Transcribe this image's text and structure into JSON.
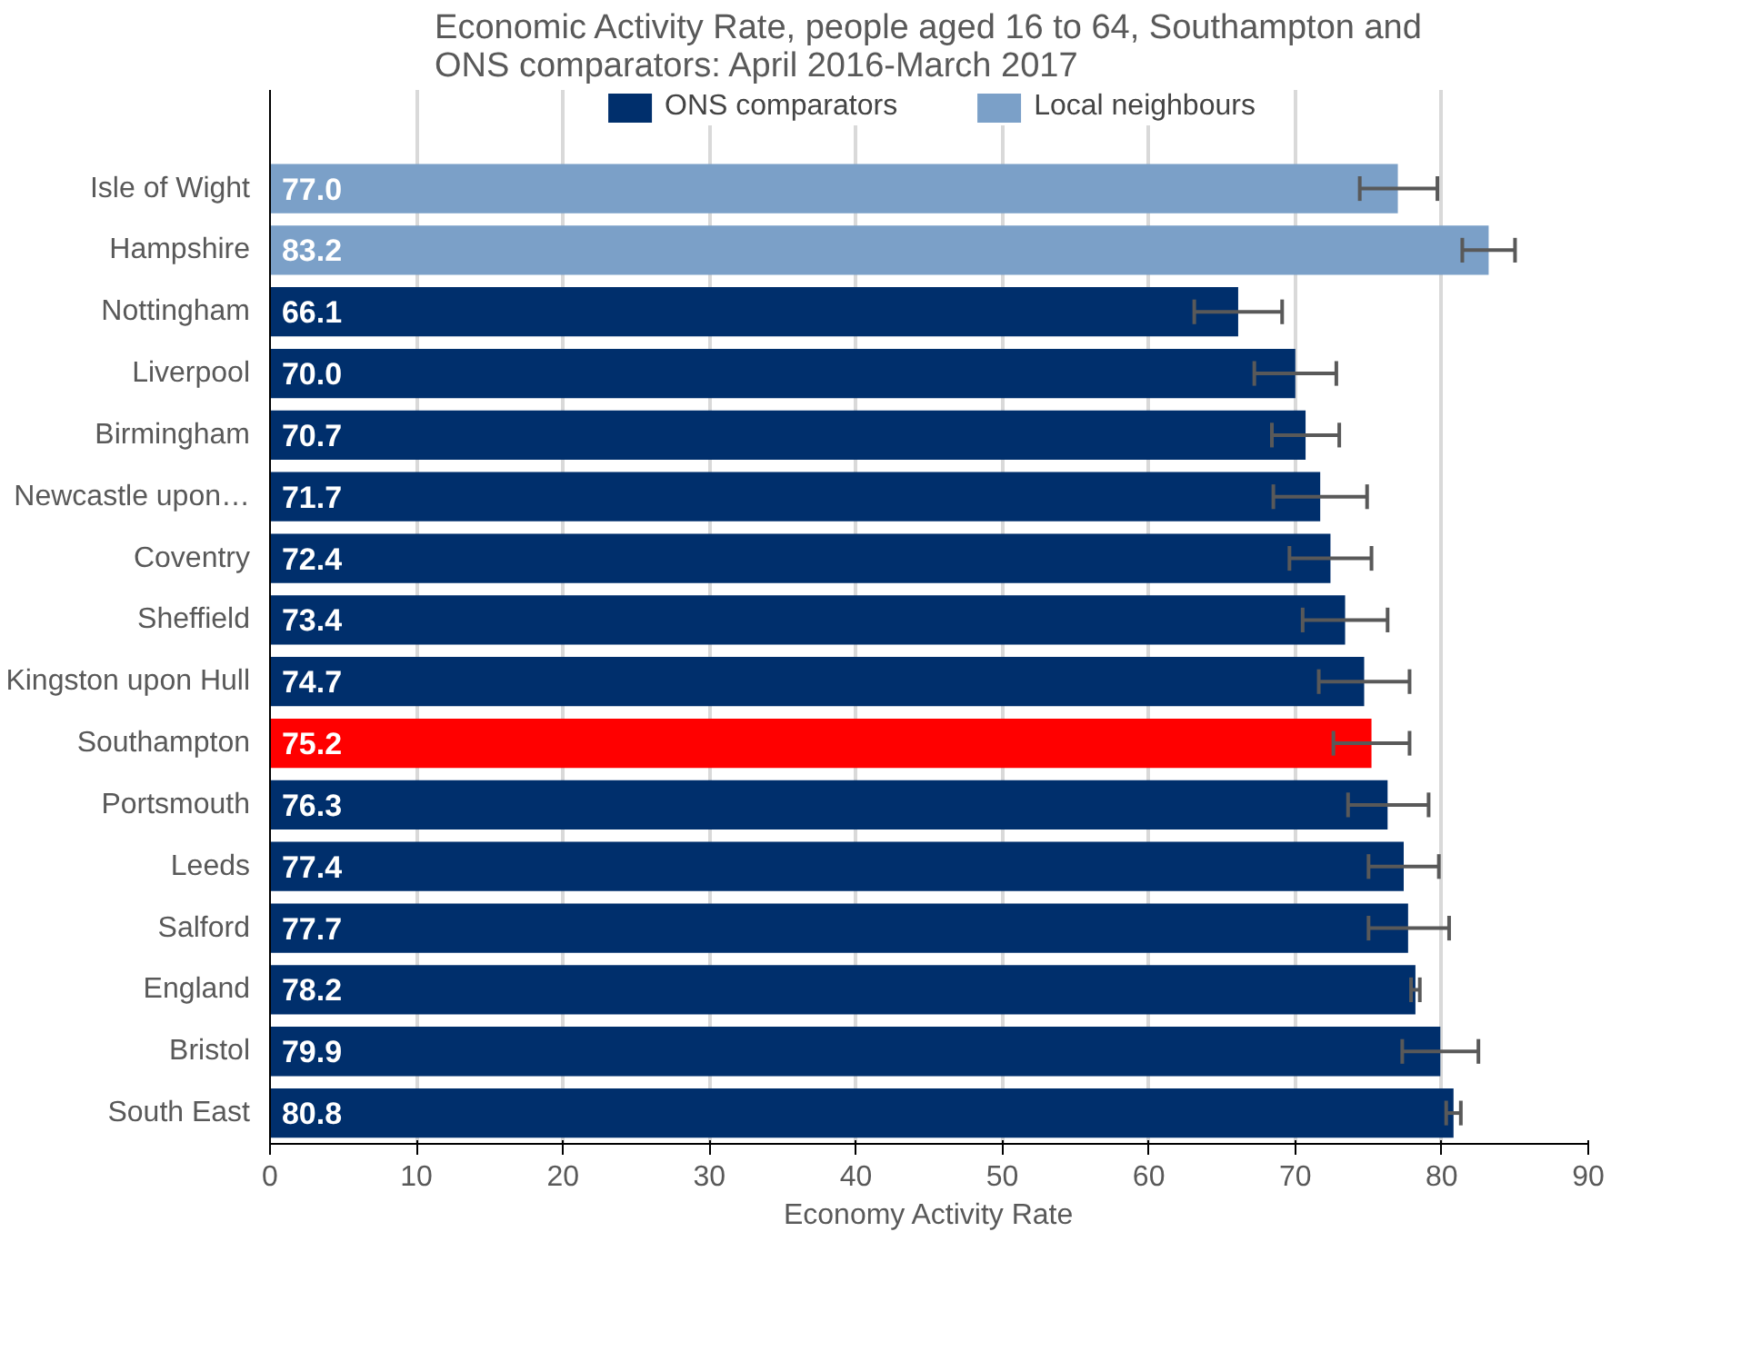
{
  "chart_data": {
    "type": "bar",
    "orientation": "horizontal",
    "title": "Economic Activity Rate, people aged 16 to 64, Southampton and ONS comparators: April 2016-March 2017",
    "xlabel": "Economy Activity Rate",
    "categories": [
      "Isle of Wight",
      "Hampshire",
      "Nottingham",
      "Liverpool",
      "Birmingham",
      "Newcastle upon…",
      "Coventry",
      "Sheffield",
      "Kingston upon Hull",
      "Southampton",
      "Portsmouth",
      "Leeds",
      "Salford",
      "England",
      "Bristol",
      "South East"
    ],
    "series": [
      {
        "name": "ONS comparators",
        "color": "#002f6c",
        "colors": [
          "#002f6c",
          "#002f6c",
          "#002f6c",
          "#002f6c",
          "#002f6c",
          "#002f6c",
          "#002f6c",
          "#002f6c",
          "#002f6c",
          "#ff0000",
          "#002f6c",
          "#002f6c",
          "#002f6c",
          "#002f6c",
          "#002f6c",
          "#002f6c"
        ],
        "values": [
          null,
          null,
          66.1,
          70.0,
          70.7,
          71.7,
          72.4,
          73.4,
          74.7,
          75.2,
          76.3,
          77.4,
          77.7,
          78.2,
          79.9,
          80.8
        ],
        "value_labels": [
          null,
          null,
          "66.1",
          "70.0",
          "70.7",
          "71.7",
          "72.4",
          "73.4",
          "74.7",
          "75.2",
          "76.3",
          "77.4",
          "77.7",
          "78.2",
          "79.9",
          "80.8"
        ],
        "errors": [
          null,
          null,
          [
            63.1,
            69.1
          ],
          [
            67.2,
            72.8
          ],
          [
            68.4,
            73.0
          ],
          [
            68.5,
            74.9
          ],
          [
            69.6,
            75.2
          ],
          [
            70.5,
            76.3
          ],
          [
            71.6,
            77.8
          ],
          [
            72.6,
            77.8
          ],
          [
            73.6,
            79.1
          ],
          [
            75.0,
            79.8
          ],
          [
            75.0,
            80.5
          ],
          [
            77.9,
            78.5
          ],
          [
            77.3,
            82.5
          ],
          [
            80.3,
            81.3
          ]
        ]
      },
      {
        "name": "Local neighbours",
        "color": "#7ba0c8",
        "values": [
          77.0,
          83.2,
          null,
          null,
          null,
          null,
          null,
          null,
          null,
          null,
          null,
          null,
          null,
          null,
          null,
          null
        ],
        "value_labels": [
          "77.0",
          "83.2",
          null,
          null,
          null,
          null,
          null,
          null,
          null,
          null,
          null,
          null,
          null,
          null,
          null,
          null
        ],
        "errors": [
          [
            74.4,
            79.7
          ],
          [
            81.4,
            85.0
          ],
          null,
          null,
          null,
          null,
          null,
          null,
          null,
          null,
          null,
          null,
          null,
          null,
          null,
          null
        ]
      }
    ],
    "xlim": [
      0,
      90
    ],
    "xticks": [
      0,
      10,
      20,
      30,
      40,
      50,
      60,
      70,
      80,
      90
    ],
    "grid": "x",
    "legend": "top"
  }
}
